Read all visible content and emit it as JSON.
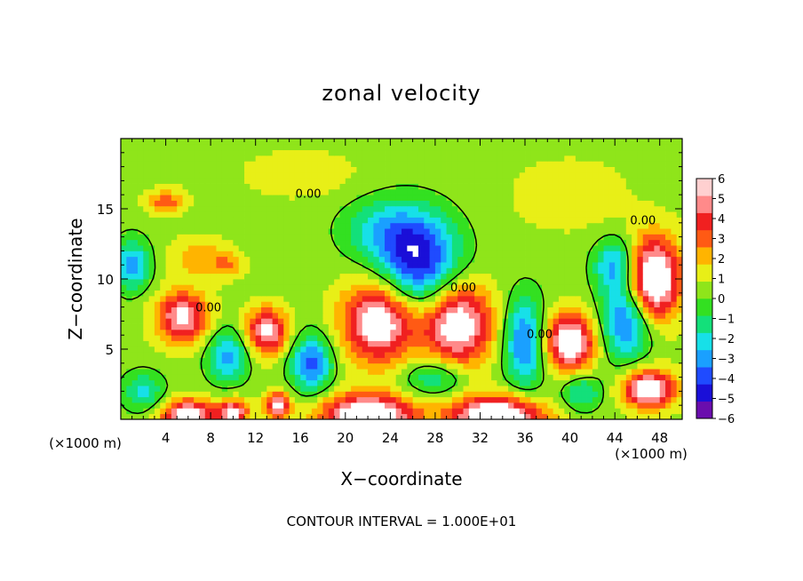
{
  "chart_data": {
    "type": "heatmap",
    "title": "zonal velocity",
    "xlabel": "X−coordinate",
    "ylabel": "Z−coordinate",
    "x_unit_left": "(×1000 m)",
    "x_unit_right": "(×1000 m)",
    "footer": "CONTOUR INTERVAL = 1.000E+01",
    "xlim": [
      0,
      50
    ],
    "ylim": [
      0,
      20
    ],
    "x_ticks": [
      4,
      8,
      12,
      16,
      20,
      24,
      28,
      32,
      36,
      40,
      44,
      48
    ],
    "y_ticks": [
      5,
      10,
      15
    ],
    "colorbar": {
      "range": [
        -6,
        6
      ],
      "ticks": [
        6,
        5,
        4,
        3,
        2,
        1,
        0,
        -1,
        -2,
        -3,
        -4,
        -5,
        -6
      ],
      "colors": [
        "#6a0dad",
        "#1a0fd8",
        "#1f4bff",
        "#1aa0ff",
        "#17e0e8",
        "#13e07a",
        "#33e021",
        "#8fe51a",
        "#e8ef17",
        "#ffb400",
        "#ff5a14",
        "#f02020",
        "#ff8a8a",
        "#ffd0d0"
      ]
    },
    "contour_labels": [
      {
        "text": "0.00",
        "x": 16.7,
        "z": 15.8
      },
      {
        "text": "0.00",
        "x": 7.8,
        "z": 7.7
      },
      {
        "text": "0.00",
        "x": 30.5,
        "z": 9.1
      },
      {
        "text": "0.00",
        "x": 37.3,
        "z": 5.8
      },
      {
        "text": "0.00",
        "x": 46.5,
        "z": 13.9
      }
    ],
    "features": [
      {
        "x": 23.0,
        "z": 7.0,
        "v": 7,
        "rx": 3.5,
        "rz": 3.2
      },
      {
        "x": 30.0,
        "z": 6.8,
        "v": 7,
        "rx": 3.3,
        "rz": 3.2
      },
      {
        "x": 5.5,
        "z": 7.3,
        "v": 6,
        "rx": 2.5,
        "rz": 2.0
      },
      {
        "x": 13.0,
        "z": 6.3,
        "v": 6,
        "rx": 2.0,
        "rz": 1.8
      },
      {
        "x": 40.0,
        "z": 5.5,
        "v": 7,
        "rx": 2.5,
        "rz": 2.3
      },
      {
        "x": 47.5,
        "z": 10.0,
        "v": 8,
        "rx": 2.5,
        "rz": 3.2
      },
      {
        "x": 47.0,
        "z": 2.2,
        "v": 7,
        "rx": 2.5,
        "rz": 1.5
      },
      {
        "x": 22.0,
        "z": 0.3,
        "v": 8,
        "rx": 4.5,
        "rz": 1.6
      },
      {
        "x": 33.5,
        "z": 0.2,
        "v": 8,
        "rx": 4.5,
        "rz": 1.6
      },
      {
        "x": 6.0,
        "z": 0.3,
        "v": 7,
        "rx": 2.5,
        "rz": 1.2
      },
      {
        "x": 10.0,
        "z": 0.5,
        "v": 6,
        "rx": 1.5,
        "rz": 1.0
      },
      {
        "x": 14.0,
        "z": 1.0,
        "v": 6,
        "rx": 1.2,
        "rz": 1.0
      },
      {
        "x": 26.5,
        "z": 11.0,
        "v": -6,
        "rx": 4.0,
        "rz": 3.5
      },
      {
        "x": 24.0,
        "z": 13.5,
        "v": -3,
        "rx": 4.5,
        "rz": 2.5
      },
      {
        "x": 36.0,
        "z": 5.5,
        "v": -5,
        "rx": 2.0,
        "rz": 3.5
      },
      {
        "x": 17.0,
        "z": 4.0,
        "v": -5,
        "rx": 2.0,
        "rz": 2.2
      },
      {
        "x": 9.5,
        "z": 4.5,
        "v": -4,
        "rx": 2.0,
        "rz": 2.0
      },
      {
        "x": 45.0,
        "z": 7.0,
        "v": -5,
        "rx": 2.5,
        "rz": 3.0
      },
      {
        "x": 44.0,
        "z": 11.0,
        "v": -4,
        "rx": 2.0,
        "rz": 2.0
      },
      {
        "x": 1.0,
        "z": 11.0,
        "v": -4,
        "rx": 1.8,
        "rz": 2.0
      },
      {
        "x": 2.0,
        "z": 2.0,
        "v": -3,
        "rx": 2.0,
        "rz": 1.5
      },
      {
        "x": 28.0,
        "z": 3.0,
        "v": -3,
        "rx": 3.0,
        "rz": 1.5
      },
      {
        "x": 41.0,
        "z": 2.0,
        "v": -3,
        "rx": 2.0,
        "rz": 1.5
      },
      {
        "x": 7.0,
        "z": 11.5,
        "v": 2,
        "rx": 3.0,
        "rz": 1.5
      },
      {
        "x": 9.5,
        "z": 11.0,
        "v": 2,
        "rx": 1.5,
        "rz": 1.0
      },
      {
        "x": 4.0,
        "z": 15.5,
        "v": 3,
        "rx": 1.8,
        "rz": 1.0
      },
      {
        "x": 16.0,
        "z": 17.5,
        "v": 1,
        "rx": 6.0,
        "rz": 2.0
      },
      {
        "x": 40.0,
        "z": 16.0,
        "v": 1,
        "rx": 6.0,
        "rz": 3.0
      }
    ],
    "grid": false
  }
}
